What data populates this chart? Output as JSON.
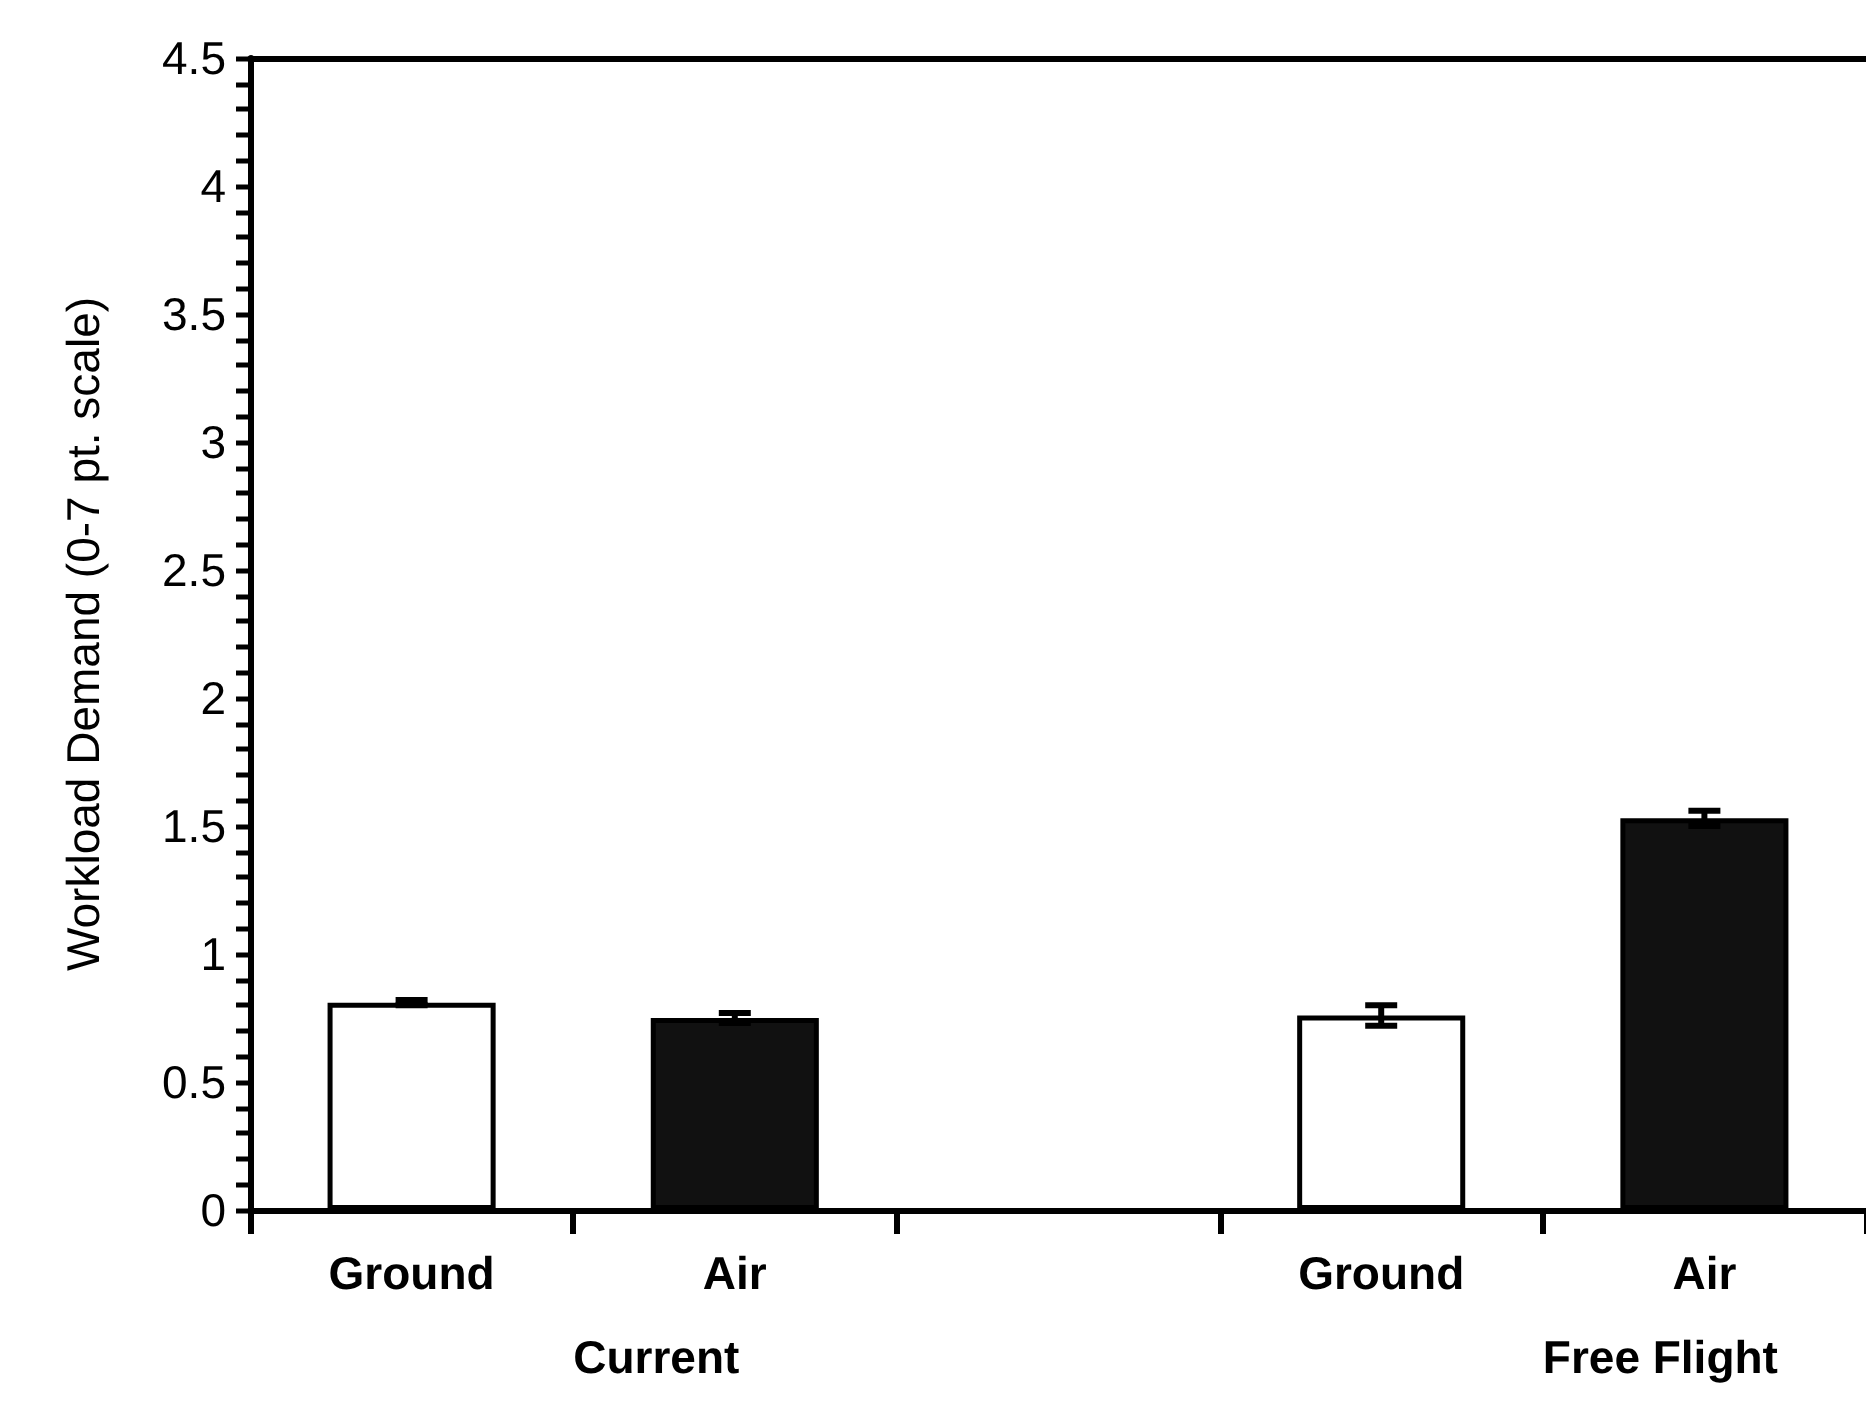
{
  "chart_data": {
    "type": "bar",
    "ylabel": "Workload Demand (0-7 pt. scale)",
    "categories": [
      "Ground",
      "Air",
      null,
      "Ground",
      "Air"
    ],
    "values": [
      0.81,
      0.75,
      null,
      0.76,
      1.53
    ],
    "errors": [
      0.01,
      0.02,
      null,
      0.04,
      0.03
    ],
    "colors": [
      "#ffffff",
      "#111111",
      null,
      "#ffffff",
      "#111111"
    ],
    "annotations": [
      "Current",
      "Free Flight"
    ],
    "ylim": [
      0,
      4.5
    ],
    "yticks": [
      0,
      {
        "value": 0.1,
        "label": null
      },
      {
        "value": 0.2,
        "label": null
      },
      {
        "value": 0.3,
        "label": null
      },
      {
        "value": 0.4,
        "label": null
      },
      0.5,
      {
        "value": 0.6,
        "label": null
      },
      {
        "value": 0.7,
        "label": null
      },
      {
        "value": 0.8,
        "label": null
      },
      {
        "value": 0.9,
        "label": null
      },
      1,
      {
        "value": 1.1,
        "label": null
      },
      {
        "value": 1.2,
        "label": null
      },
      {
        "value": 1.3,
        "label": null
      },
      {
        "value": 1.4,
        "label": null
      },
      1.5,
      {
        "value": 1.6,
        "label": null
      },
      {
        "value": 1.7,
        "label": null
      },
      {
        "value": 1.8,
        "label": null
      },
      {
        "value": 1.9,
        "label": null
      },
      2,
      {
        "value": 2.1,
        "label": null
      },
      {
        "value": 2.2,
        "label": null
      },
      {
        "value": 2.3,
        "label": null
      },
      {
        "value": 2.4,
        "label": null
      },
      2.5,
      {
        "value": 2.6,
        "label": null
      },
      {
        "value": 2.7,
        "label": null
      },
      {
        "value": 2.8,
        "label": null
      },
      {
        "value": 2.9,
        "label": null
      },
      3,
      {
        "value": 3.1,
        "label": null
      },
      {
        "value": 3.2,
        "label": null
      },
      {
        "value": 3.3,
        "label": null
      },
      {
        "value": 3.4,
        "label": null
      },
      3.5,
      {
        "value": 3.6,
        "label": null
      },
      {
        "value": 3.7,
        "label": null
      },
      {
        "value": 3.8,
        "label": null
      },
      {
        "value": 3.9,
        "label": null
      },
      4,
      {
        "value": 4.1,
        "label": null
      },
      {
        "value": 4.2,
        "label": null
      },
      {
        "value": 4.3,
        "label": null
      },
      {
        "value": 4.4,
        "label": null
      },
      4.5
    ]
  }
}
